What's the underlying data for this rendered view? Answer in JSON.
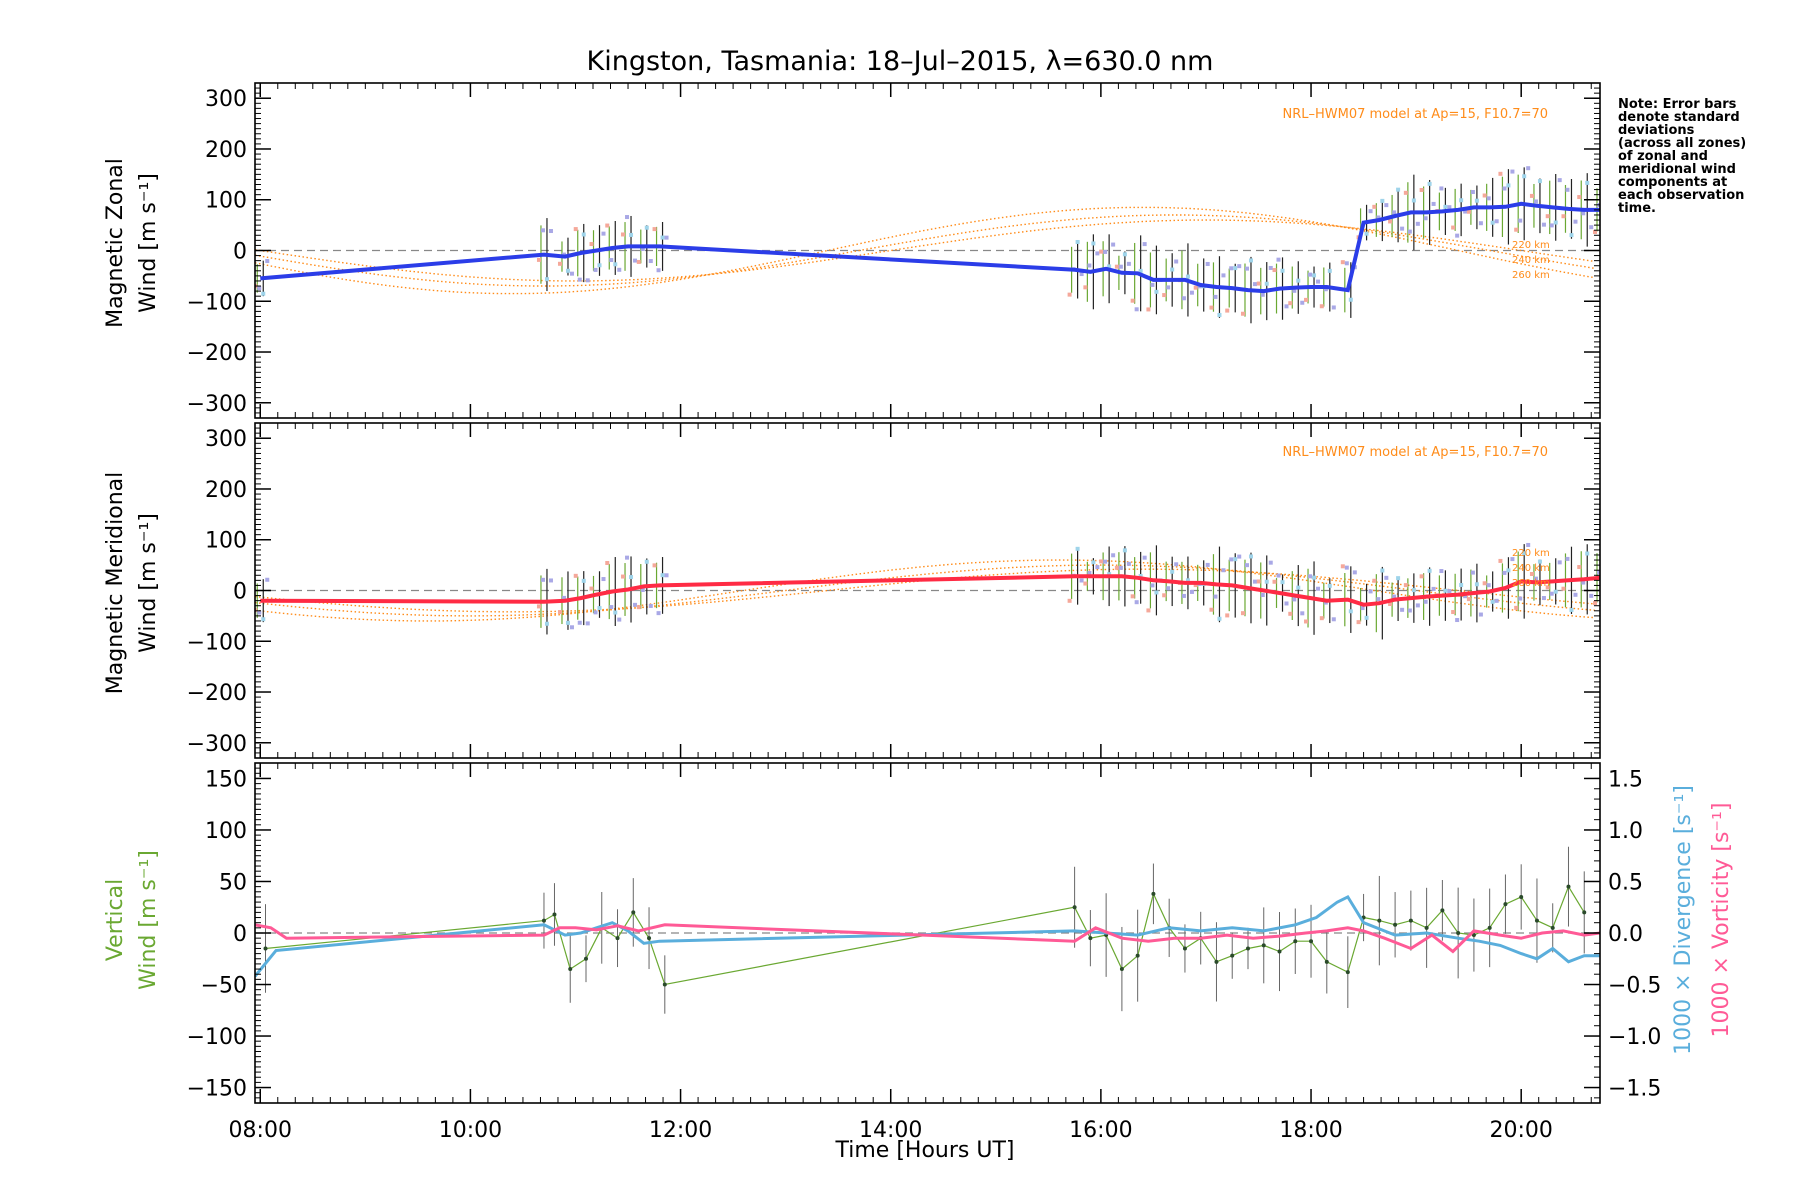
{
  "title": "Kingston, Tasmania: 18–Jul–2015, λ=630.0 nm",
  "note": [
    "Note: Error bars",
    "denote standard",
    "deviations",
    "(across all zones)",
    "of zonal and",
    "meridional wind",
    "components at",
    "each observation",
    "time."
  ],
  "colors": {
    "zonal": "#2b3de8",
    "meridional": "#ff2b44",
    "vertical": "#6aa832",
    "divergence": "#5aaedc",
    "vorticity": "#ff5a96",
    "model": "#ff8c1a"
  },
  "chart_data": [
    {
      "type": "line",
      "name": "zonal",
      "ylabel_line1": "Magnetic Zonal",
      "ylabel_line2": "Wind [m s⁻¹]",
      "ylim": [
        -330,
        330
      ],
      "xlim": [
        7.95,
        20.75
      ],
      "yticks": [
        "300",
        "200",
        "100",
        "0",
        "−100",
        "−200",
        "−300"
      ],
      "model_label": "NRL–HWM07 model at Ap=15, F10.7=70",
      "altitude_labels": [
        "220 km",
        "240 km",
        "260 km"
      ],
      "x": [
        8.0,
        10.7,
        10.9,
        11.05,
        11.2,
        11.35,
        11.5,
        11.65,
        11.8,
        15.75,
        15.9,
        16.05,
        16.2,
        16.35,
        16.5,
        16.65,
        16.8,
        16.95,
        17.1,
        17.25,
        17.4,
        17.55,
        17.7,
        17.85,
        18.0,
        18.15,
        18.35,
        18.5,
        18.65,
        18.8,
        18.95,
        19.1,
        19.25,
        19.4,
        19.55,
        19.7,
        19.85,
        20.0,
        20.15,
        20.3,
        20.45,
        20.6,
        20.75
      ],
      "y": [
        -55,
        -8,
        -12,
        -5,
        0,
        5,
        8,
        8,
        8,
        -38,
        -42,
        -36,
        -44,
        -45,
        -58,
        -58,
        -58,
        -68,
        -72,
        -74,
        -78,
        -80,
        -75,
        -73,
        -72,
        -72,
        -78,
        55,
        60,
        68,
        75,
        75,
        77,
        80,
        85,
        85,
        86,
        92,
        88,
        85,
        82,
        80,
        80
      ]
    },
    {
      "type": "line",
      "name": "meridional",
      "ylabel_line1": "Magnetic Meridional",
      "ylabel_line2": "Wind [m s⁻¹]",
      "ylim": [
        -330,
        330
      ],
      "xlim": [
        7.95,
        20.75
      ],
      "yticks": [
        "300",
        "200",
        "100",
        "0",
        "−100",
        "−200",
        "−300"
      ],
      "model_label": "NRL–HWM07 model at Ap=15, F10.7=70",
      "altitude_labels": [
        "220 km",
        "240 km",
        "260 km"
      ],
      "x": [
        8.0,
        10.7,
        10.9,
        11.05,
        11.2,
        11.35,
        11.5,
        11.65,
        11.8,
        15.75,
        15.9,
        16.05,
        16.2,
        16.35,
        16.5,
        16.65,
        16.8,
        16.95,
        17.1,
        17.25,
        17.4,
        17.55,
        17.7,
        17.85,
        18.0,
        18.15,
        18.35,
        18.5,
        18.65,
        18.8,
        18.95,
        19.1,
        19.25,
        19.4,
        19.55,
        19.7,
        19.85,
        20.0,
        20.15,
        20.3,
        20.45,
        20.6,
        20.75
      ],
      "y": [
        -20,
        -22,
        -20,
        -15,
        -8,
        -2,
        2,
        8,
        10,
        28,
        28,
        28,
        28,
        25,
        20,
        18,
        15,
        15,
        12,
        10,
        5,
        0,
        -5,
        -10,
        -15,
        -20,
        -18,
        -28,
        -25,
        -18,
        -15,
        -12,
        -10,
        -8,
        -5,
        -2,
        5,
        18,
        16,
        18,
        20,
        22,
        25
      ]
    },
    {
      "type": "line",
      "name": "vertical",
      "ylabel_line1": "Vertical",
      "ylabel_line2": "Wind [m s⁻¹]",
      "ylim": [
        -165,
        165
      ],
      "xlim": [
        7.95,
        20.75
      ],
      "yticks": [
        "150",
        "100",
        "50",
        "0",
        "−50",
        "−100",
        "−150"
      ],
      "right_ylim": [
        -1.65,
        1.65
      ],
      "right_yticks": [
        "1.5",
        "1.0",
        "0.5",
        "0.0",
        "−0.5",
        "−1.0",
        "−1.5"
      ],
      "right_ylabel_div": "1000 × Divergence [s⁻¹]",
      "right_ylabel_vort": "1000 × Vorticity [s⁻¹]",
      "xticks": [
        "08:00",
        "10:00",
        "12:00",
        "14:00",
        "16:00",
        "18:00",
        "20:00"
      ],
      "xlabel": "Time [Hours UT]",
      "vertical_x": [
        8.05,
        10.7,
        10.8,
        10.95,
        11.1,
        11.25,
        11.4,
        11.55,
        11.7,
        11.85,
        15.75,
        15.9,
        16.05,
        16.2,
        16.35,
        16.5,
        16.65,
        16.8,
        16.95,
        17.1,
        17.25,
        17.4,
        17.55,
        17.7,
        17.85,
        18.0,
        18.15,
        18.35,
        18.5,
        18.65,
        18.8,
        18.95,
        19.1,
        19.25,
        19.4,
        19.55,
        19.7,
        19.85,
        20.0,
        20.15,
        20.3,
        20.45,
        20.6
      ],
      "vertical_y": [
        -15,
        12,
        18,
        -35,
        -25,
        5,
        -5,
        20,
        -5,
        -50,
        25,
        -5,
        -2,
        -35,
        -22,
        38,
        5,
        -15,
        -5,
        -28,
        -22,
        -15,
        -12,
        -18,
        -8,
        -8,
        -28,
        -38,
        15,
        12,
        8,
        12,
        5,
        22,
        0,
        -2,
        5,
        28,
        35,
        12,
        5,
        45,
        20
      ],
      "divergence_x": [
        7.95,
        8.15,
        10.7,
        10.9,
        11.05,
        11.2,
        11.35,
        11.5,
        11.65,
        11.8,
        15.75,
        16.05,
        16.35,
        16.65,
        16.95,
        17.25,
        17.55,
        17.85,
        18.05,
        18.25,
        18.35,
        18.5,
        18.8,
        19.1,
        19.4,
        19.6,
        19.8,
        20.0,
        20.15,
        20.3,
        20.45,
        20.6,
        20.75
      ],
      "divergence_y": [
        -0.42,
        -0.17,
        0.08,
        -0.02,
        0.0,
        0.05,
        0.1,
        0.02,
        -0.1,
        -0.08,
        0.02,
        0.0,
        -0.02,
        0.05,
        0.02,
        0.05,
        0.02,
        0.08,
        0.15,
        0.3,
        0.35,
        0.1,
        -0.02,
        0.0,
        -0.05,
        -0.08,
        -0.12,
        -0.2,
        -0.25,
        -0.15,
        -0.28,
        -0.22,
        -0.22
      ],
      "vorticity_x": [
        7.95,
        8.1,
        8.25,
        10.7,
        10.85,
        11.0,
        11.2,
        11.4,
        11.6,
        11.85,
        15.75,
        15.95,
        16.2,
        16.45,
        16.7,
        16.95,
        17.2,
        17.45,
        17.7,
        17.95,
        18.15,
        18.35,
        18.5,
        18.7,
        18.95,
        19.15,
        19.35,
        19.55,
        19.8,
        20.0,
        20.2,
        20.4,
        20.6,
        20.75
      ],
      "vorticity_y": [
        0.08,
        0.05,
        -0.05,
        -0.02,
        0.05,
        0.05,
        0.03,
        0.07,
        0.02,
        0.08,
        -0.08,
        0.05,
        -0.05,
        -0.08,
        -0.05,
        -0.05,
        -0.02,
        -0.05,
        -0.03,
        0.0,
        0.02,
        0.05,
        0.02,
        -0.05,
        -0.15,
        -0.02,
        -0.18,
        0.02,
        -0.02,
        -0.05,
        0.0,
        0.02,
        -0.02,
        0.0
      ]
    }
  ]
}
